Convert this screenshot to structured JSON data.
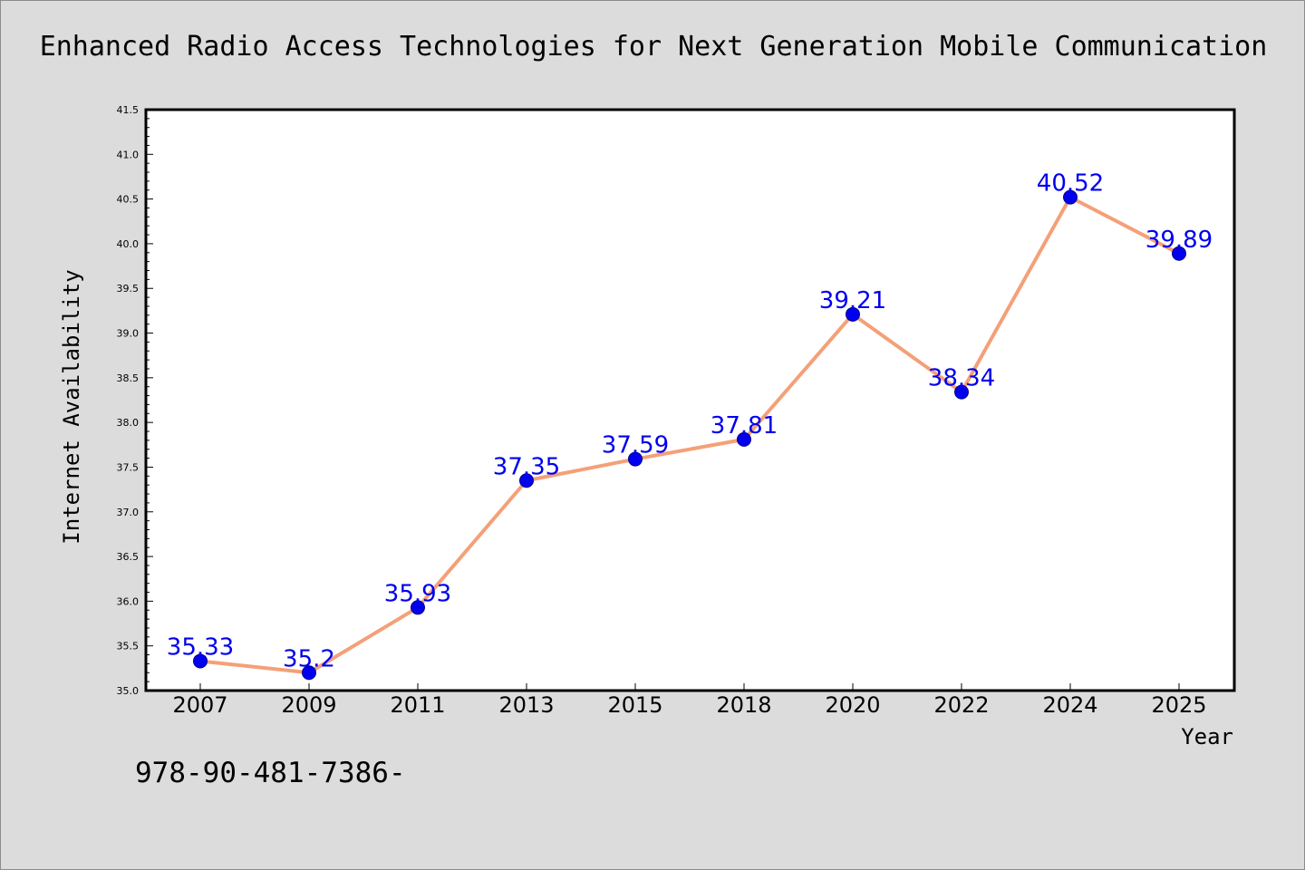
{
  "chart_data": {
    "type": "line",
    "title": "Enhanced Radio Access Technologies for Next Generation Mobile Communication",
    "xlabel": "Year",
    "ylabel": "Internet Availability",
    "categories": [
      "2007",
      "2009",
      "2011",
      "2013",
      "2015",
      "2018",
      "2020",
      "2022",
      "2024",
      "2025"
    ],
    "series": [
      {
        "values": [
          35.33,
          35.2,
          35.93,
          37.35,
          37.59,
          37.81,
          39.21,
          38.34,
          40.52,
          39.89
        ],
        "data_labels": [
          "35.33",
          "35.2",
          "35.93",
          "37.35",
          "37.59",
          "37.81",
          "39.21",
          "38.34",
          "40.52",
          "39.89"
        ]
      }
    ],
    "ylim": [
      35.0,
      41.5
    ],
    "yticks": [
      "35.0",
      "35.5",
      "36.0",
      "36.5",
      "37.0",
      "37.5",
      "38.0",
      "38.5",
      "39.0",
      "39.5",
      "40.0",
      "40.5",
      "41.0",
      "41.5"
    ],
    "grid": false,
    "legend": "none",
    "colors": {
      "line": "#f4a078",
      "marker": "#0000ee",
      "label": "#0000ee",
      "plot_background": "#ffffff",
      "page_background": "#dcdcdc"
    }
  },
  "footnote": "978-90-481-7386-"
}
